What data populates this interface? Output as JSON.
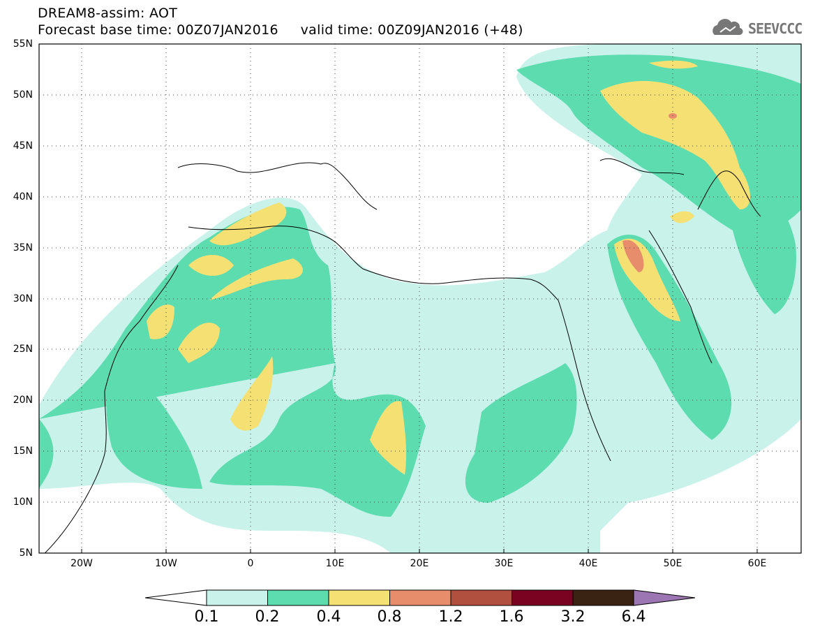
{
  "header": {
    "title_line1": "DREAM8-assim: AOT",
    "title_line2": "Forecast base time: 00Z07JAN2016     valid time: 00Z09JAN2016 (+48)",
    "logo_text": "SEEVCCC"
  },
  "map": {
    "lat_labels": [
      "55N",
      "50N",
      "45N",
      "40N",
      "35N",
      "30N",
      "25N",
      "20N",
      "15N",
      "10N",
      "5N"
    ],
    "lon_labels": [
      "20W",
      "10W",
      "0",
      "10E",
      "20E",
      "30E",
      "40E",
      "50E",
      "60E"
    ],
    "region": "North Africa, Europe and Middle East"
  },
  "colorbar": {
    "labels": [
      "0.1",
      "0.2",
      "0.4",
      "0.8",
      "1.2",
      "1.6",
      "3.2",
      "6.4"
    ],
    "colors": [
      "#c8f2ea",
      "#5ddcb0",
      "#f5e173",
      "#e88d6c",
      "#b1503f",
      "#7a0322",
      "#3a2313",
      "#9c76b3"
    ],
    "under_color": "#ffffff"
  }
}
